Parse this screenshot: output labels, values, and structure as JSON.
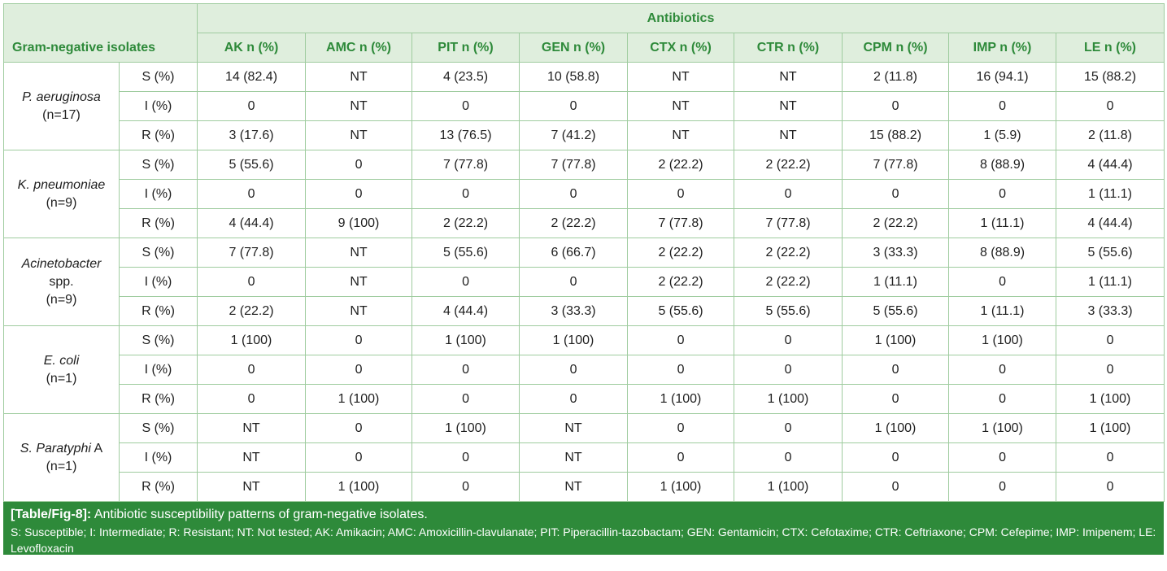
{
  "header": {
    "group_label": "Antibiotics",
    "isolate_label": "Gram-negative isolates",
    "columns": [
      "AK n (%)",
      "AMC n (%)",
      "PIT n (%)",
      "GEN n (%)",
      "CTX n (%)",
      "CTR n (%)",
      "CPM n (%)",
      "IMP n (%)",
      "LE n (%)"
    ]
  },
  "organisms": [
    {
      "name": "P. aeruginosa",
      "count": "(n=17)",
      "rows": [
        {
          "category": "S (%)",
          "values": [
            "14 (82.4)",
            "NT",
            "4 (23.5)",
            "10 (58.8)",
            "NT",
            "NT",
            "2 (11.8)",
            "16 (94.1)",
            "15 (88.2)"
          ]
        },
        {
          "category": "I (%)",
          "values": [
            "0",
            "NT",
            "0",
            "0",
            "NT",
            "NT",
            "0",
            "0",
            "0"
          ]
        },
        {
          "category": "R (%)",
          "values": [
            "3 (17.6)",
            "NT",
            "13 (76.5)",
            "7 (41.2)",
            "NT",
            "NT",
            "15 (88.2)",
            "1 (5.9)",
            "2 (11.8)"
          ]
        }
      ]
    },
    {
      "name": "K. pneumoniae",
      "count": "(n=9)",
      "rows": [
        {
          "category": "S (%)",
          "values": [
            "5 (55.6)",
            "0",
            "7 (77.8)",
            "7 (77.8)",
            "2 (22.2)",
            "2 (22.2)",
            "7 (77.8)",
            "8 (88.9)",
            "4 (44.4)"
          ]
        },
        {
          "category": "I (%)",
          "values": [
            "0",
            "0",
            "0",
            "0",
            "0",
            "0",
            "0",
            "0",
            "1 (11.1)"
          ]
        },
        {
          "category": "R (%)",
          "values": [
            "4 (44.4)",
            "9 (100)",
            "2 (22.2)",
            "2 (22.2)",
            "7 (77.8)",
            "7 (77.8)",
            "2 (22.2)",
            "1 (11.1)",
            "4 (44.4)"
          ]
        }
      ]
    },
    {
      "name": "Acinetobacter",
      "name_suffix": "spp.",
      "count": "(n=9)",
      "rows": [
        {
          "category": "S (%)",
          "values": [
            "7 (77.8)",
            "NT",
            "5 (55.6)",
            "6 (66.7)",
            "2 (22.2)",
            "2 (22.2)",
            "3 (33.3)",
            "8 (88.9)",
            "5 (55.6)"
          ]
        },
        {
          "category": "I (%)",
          "values": [
            "0",
            "NT",
            "0",
            "0",
            "2 (22.2)",
            "2 (22.2)",
            "1 (11.1)",
            "0",
            "1 (11.1)"
          ]
        },
        {
          "category": "R (%)",
          "values": [
            "2 (22.2)",
            "NT",
            "4 (44.4)",
            "3 (33.3)",
            "5 (55.6)",
            "5 (55.6)",
            "5 (55.6)",
            "1 (11.1)",
            "3 (33.3)"
          ]
        }
      ]
    },
    {
      "name": "E. coli",
      "count": "(n=1)",
      "rows": [
        {
          "category": "S (%)",
          "values": [
            "1 (100)",
            "0",
            "1 (100)",
            "1 (100)",
            "0",
            "0",
            "1 (100)",
            "1 (100)",
            "0"
          ]
        },
        {
          "category": "I (%)",
          "values": [
            "0",
            "0",
            "0",
            "0",
            "0",
            "0",
            "0",
            "0",
            "0"
          ]
        },
        {
          "category": "R (%)",
          "values": [
            "0",
            "1 (100)",
            "0",
            "0",
            "1 (100)",
            "1 (100)",
            "0",
            "0",
            "1 (100)"
          ]
        }
      ]
    },
    {
      "name": "S. Paratyphi",
      "name_suffix": "A",
      "count": "(n=1)",
      "rows": [
        {
          "category": "S (%)",
          "values": [
            "NT",
            "0",
            "1 (100)",
            "NT",
            "0",
            "0",
            "1 (100)",
            "1 (100)",
            "1 (100)"
          ]
        },
        {
          "category": "I (%)",
          "values": [
            "NT",
            "0",
            "0",
            "NT",
            "0",
            "0",
            "0",
            "0",
            "0"
          ]
        },
        {
          "category": "R (%)",
          "values": [
            "NT",
            "1 (100)",
            "0",
            "NT",
            "1 (100)",
            "1 (100)",
            "0",
            "0",
            "0"
          ]
        }
      ]
    }
  ],
  "caption": {
    "label": "[Table/Fig-8]:",
    "title": " Antibiotic susceptibility patterns of gram-negative isolates.",
    "notes": "S: Susceptible; I: Intermediate; R: Resistant; NT: Not tested; AK: Amikacin; AMC: Amoxicillin-clavulanate; PIT: Piperacillin-tazobactam; GEN: Gentamicin; CTX: Cefotaxime; CTR: Ceftriaxone; CPM: Cefepime; IMP: Imipenem; LE: Levofloxacin"
  },
  "colors": {
    "accent": "#2e8a3a",
    "header_bg": "#dfeedd",
    "border": "#9fcc9f"
  }
}
